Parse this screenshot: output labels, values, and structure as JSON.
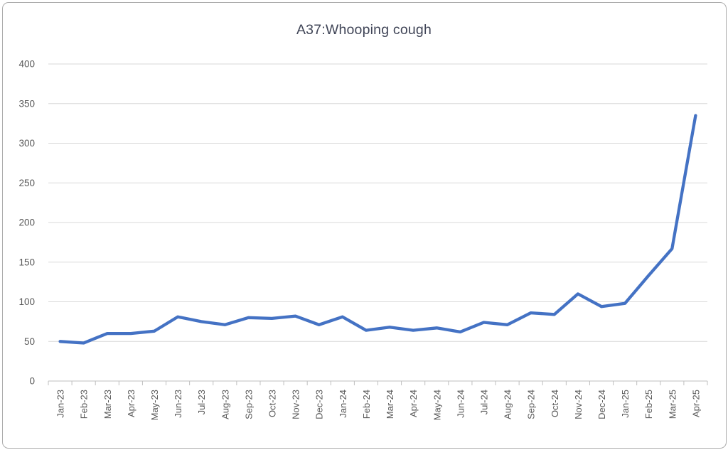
{
  "chart_data": {
    "type": "line",
    "title": "A37:Whooping cough",
    "categories": [
      "Jan-23",
      "Feb-23",
      "Mar-23",
      "Apr-23",
      "May-23",
      "Jun-23",
      "Jul-23",
      "Aug-23",
      "Sep-23",
      "Oct-23",
      "Nov-23",
      "Dec-23",
      "Jan-24",
      "Feb-24",
      "Mar-24",
      "Apr-24",
      "May-24",
      "Jun-24",
      "Jul-24",
      "Aug-24",
      "Sep-24",
      "Oct-24",
      "Nov-24",
      "Dec-24",
      "Jan-25",
      "Feb-25",
      "Mar-25",
      "Apr-25"
    ],
    "values": [
      50,
      48,
      60,
      60,
      63,
      81,
      75,
      71,
      80,
      79,
      82,
      71,
      81,
      64,
      68,
      64,
      67,
      62,
      74,
      71,
      86,
      84,
      110,
      94,
      98,
      133,
      167,
      335
    ],
    "xlabel": "",
    "ylabel": "",
    "ylim": [
      0,
      400
    ],
    "yticks": [
      0,
      50,
      100,
      150,
      200,
      250,
      300,
      350,
      400
    ],
    "grid": "horizontal",
    "legend": "none",
    "markers": "none",
    "x_label_rotation": -90,
    "colors": {
      "line": "#4472C4",
      "gridline": "#D9D9D9",
      "axis_line": "#BFBFBF",
      "tick": "#BFBFBF",
      "axis_text": "#595959",
      "title_text": "#404557",
      "frame_border": "#ACACAC",
      "background": "#FFFFFF"
    }
  }
}
